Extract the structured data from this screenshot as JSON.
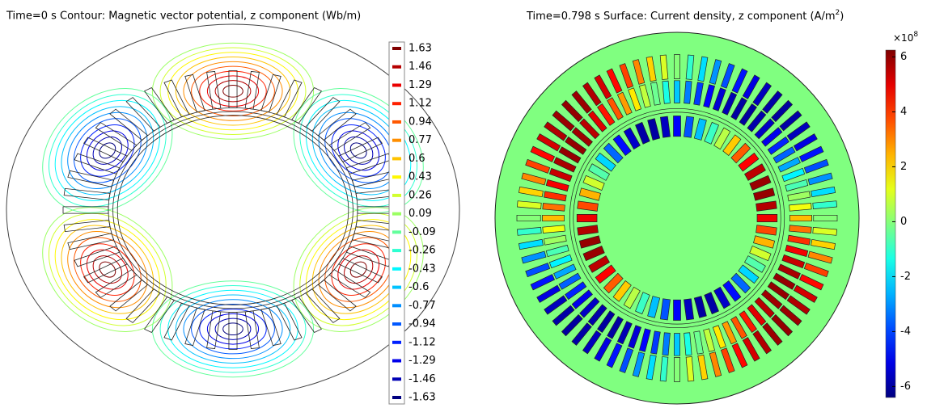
{
  "panels": [
    {
      "type": "contour",
      "title": "Time=0 s   Contour: Magnetic vector potential, z component (Wb/m)",
      "levels": [
        1.63,
        1.46,
        1.29,
        1.12,
        0.94,
        0.77,
        0.6,
        0.43,
        0.26,
        0.09,
        -0.09,
        -0.26,
        -0.43,
        -0.6,
        -0.77,
        -0.94,
        -1.12,
        -1.29,
        -1.46,
        -1.63
      ]
    },
    {
      "type": "surface",
      "title": "Time=0.798 s   Surface: Current density, z component (A/m",
      "title_sup": "2",
      "title_end": ")",
      "scale_base": "×10",
      "scale_exp": "8",
      "ylim": [
        -6.4,
        6.25
      ],
      "yticks": [
        6,
        4,
        2,
        0,
        -2,
        -4,
        -6
      ]
    }
  ]
}
